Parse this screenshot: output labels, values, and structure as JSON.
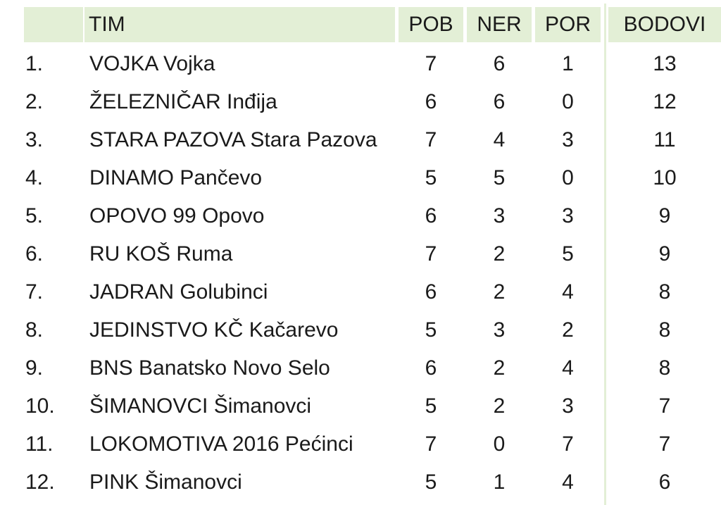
{
  "header": {
    "rank": "",
    "tim": "TIM",
    "pob": "POB",
    "ner": "NER",
    "por": "POR",
    "bodovi": "BODOVI"
  },
  "colors": {
    "header_bg": "#e3efd6",
    "text": "#1a1a1a"
  },
  "rows": [
    {
      "rank": "1.",
      "team": "VOJKA Vojka",
      "pob": "7",
      "ner": "6",
      "por": "1",
      "bodovi": "13"
    },
    {
      "rank": "2.",
      "team": "ŽELEZNIČAR Inđija",
      "pob": "6",
      "ner": "6",
      "por": "0",
      "bodovi": "12"
    },
    {
      "rank": "3.",
      "team": "STARA PAZOVA Stara Pazova",
      "pob": "7",
      "ner": "4",
      "por": "3",
      "bodovi": "11"
    },
    {
      "rank": "4.",
      "team": "DINAMO Pančevo",
      "pob": "5",
      "ner": "5",
      "por": "0",
      "bodovi": "10"
    },
    {
      "rank": "5.",
      "team": "OPOVO 99 Opovo",
      "pob": "6",
      "ner": "3",
      "por": "3",
      "bodovi": "9"
    },
    {
      "rank": "6.",
      "team": "RU KOŠ Ruma",
      "pob": "7",
      "ner": "2",
      "por": "5",
      "bodovi": "9"
    },
    {
      "rank": "7.",
      "team": "JADRAN Golubinci",
      "pob": "6",
      "ner": "2",
      "por": "4",
      "bodovi": "8"
    },
    {
      "rank": "8.",
      "team": "JEDINSTVO KČ Kačarevo",
      "pob": "5",
      "ner": "3",
      "por": "2",
      "bodovi": "8"
    },
    {
      "rank": "9.",
      "team": "BNS Banatsko Novo Selo",
      "pob": "6",
      "ner": "2",
      "por": "4",
      "bodovi": "8"
    },
    {
      "rank": "10.",
      "team": "ŠIMANOVCI Šimanovci",
      "pob": "5",
      "ner": "2",
      "por": "3",
      "bodovi": "7"
    },
    {
      "rank": "11.",
      "team": "LOKOMOTIVA 2016 Pećinci",
      "pob": "7",
      "ner": "0",
      "por": "7",
      "bodovi": "7"
    },
    {
      "rank": "12.",
      "team": "PINK Šimanovci",
      "pob": "5",
      "ner": "1",
      "por": "4",
      "bodovi": "6"
    }
  ]
}
